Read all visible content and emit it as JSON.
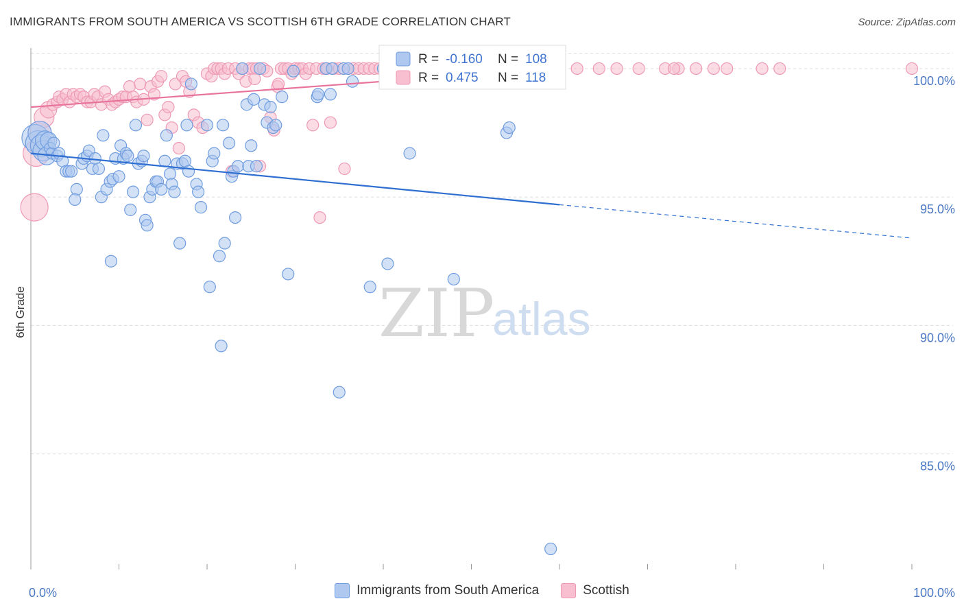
{
  "header": {
    "title": "IMMIGRANTS FROM SOUTH AMERICA VS SCOTTISH 6TH GRADE CORRELATION CHART",
    "source": "Source: ZipAtlas.com"
  },
  "watermark": {
    "zip": "ZIP",
    "atlas": "atlas"
  },
  "colors": {
    "blue_fill": "#aec8ef",
    "blue_stroke": "#6f9de0",
    "blue_line": "#2f6fd1",
    "pink_fill": "#f7bfd0",
    "pink_stroke": "#ee9ab5",
    "pink_line": "#e8739c",
    "tick_text": "#4a78c4",
    "grid": "#dcdcdc"
  },
  "legend_top": {
    "rows": [
      {
        "r_label": "R =",
        "r_value": "-0.160",
        "n_label": "N =",
        "n_value": "108"
      },
      {
        "r_label": "R =",
        "r_value": "0.475",
        "n_label": "N =",
        "n_value": "118"
      }
    ]
  },
  "chart_data": {
    "type": "scatter",
    "title": "IMMIGRANTS FROM SOUTH AMERICA VS SCOTTISH 6TH GRADE CORRELATION CHART",
    "xlabel": "",
    "ylabel": "6th Grade",
    "xlim": [
      0,
      100
    ],
    "ylim": [
      80.5,
      100.8
    ],
    "x_tick_labels": [
      "0.0%",
      "100.0%"
    ],
    "y_ticks": [
      85,
      90,
      95,
      100
    ],
    "y_tick_labels": [
      "85.0%",
      "90.0%",
      "95.0%",
      "100.0%"
    ],
    "grid": true,
    "legend_position": "top-center",
    "series": [
      {
        "name": "Immigrants from South America",
        "color": "#aec8ef",
        "R": -0.16,
        "N": 108,
        "trend": {
          "x0": 0,
          "y0": 96.7,
          "x1": 60,
          "y1": 94.7,
          "dash_to_x": 100,
          "dash_to_y": 93.4
        },
        "points": [
          [
            0.5,
            97.3
          ],
          [
            0.8,
            97.1
          ],
          [
            1.0,
            97.5
          ],
          [
            1.2,
            97.0
          ],
          [
            1.4,
            96.8
          ],
          [
            1.6,
            97.2
          ],
          [
            1.8,
            96.6
          ],
          [
            2.0,
            97.2
          ],
          [
            2.2,
            96.9
          ],
          [
            2.4,
            96.7
          ],
          [
            2.6,
            97.1
          ],
          [
            3.0,
            96.6
          ],
          [
            3.2,
            96.7
          ],
          [
            3.6,
            96.4
          ],
          [
            4.0,
            96.0
          ],
          [
            4.3,
            96.0
          ],
          [
            4.6,
            96.0
          ],
          [
            5.2,
            95.3
          ],
          [
            5.0,
            94.9
          ],
          [
            5.8,
            96.3
          ],
          [
            6.0,
            96.5
          ],
          [
            6.4,
            96.6
          ],
          [
            6.6,
            96.8
          ],
          [
            7.0,
            96.1
          ],
          [
            7.3,
            96.5
          ],
          [
            7.7,
            96.1
          ],
          [
            8.0,
            95.0
          ],
          [
            8.2,
            97.4
          ],
          [
            8.6,
            95.3
          ],
          [
            9.0,
            95.6
          ],
          [
            9.3,
            95.7
          ],
          [
            9.1,
            92.5
          ],
          [
            9.6,
            96.5
          ],
          [
            10.0,
            95.8
          ],
          [
            10.2,
            97.0
          ],
          [
            10.5,
            96.5
          ],
          [
            10.8,
            96.7
          ],
          [
            11.0,
            96.6
          ],
          [
            11.3,
            94.5
          ],
          [
            11.6,
            95.2
          ],
          [
            11.9,
            97.8
          ],
          [
            12.2,
            96.3
          ],
          [
            12.6,
            96.4
          ],
          [
            12.8,
            96.6
          ],
          [
            13.0,
            94.1
          ],
          [
            13.2,
            93.9
          ],
          [
            13.5,
            95.0
          ],
          [
            13.8,
            95.3
          ],
          [
            14.2,
            95.6
          ],
          [
            14.4,
            95.6
          ],
          [
            14.8,
            95.3
          ],
          [
            15.2,
            96.4
          ],
          [
            15.4,
            97.4
          ],
          [
            15.8,
            95.9
          ],
          [
            16.0,
            95.5
          ],
          [
            16.3,
            95.2
          ],
          [
            16.6,
            96.3
          ],
          [
            16.9,
            93.2
          ],
          [
            17.2,
            96.3
          ],
          [
            17.5,
            96.4
          ],
          [
            17.7,
            97.8
          ],
          [
            17.9,
            96.0
          ],
          [
            18.2,
            99.4
          ],
          [
            18.8,
            95.5
          ],
          [
            19.0,
            95.2
          ],
          [
            19.3,
            94.6
          ],
          [
            20.0,
            97.8
          ],
          [
            20.3,
            91.5
          ],
          [
            20.6,
            96.4
          ],
          [
            20.8,
            96.7
          ],
          [
            21.4,
            92.7
          ],
          [
            21.6,
            89.2
          ],
          [
            21.8,
            97.8
          ],
          [
            22.0,
            93.2
          ],
          [
            22.5,
            97.1
          ],
          [
            22.8,
            95.8
          ],
          [
            23.0,
            96.0
          ],
          [
            23.2,
            94.2
          ],
          [
            23.5,
            96.2
          ],
          [
            24.0,
            100.0
          ],
          [
            24.5,
            98.6
          ],
          [
            24.7,
            96.2
          ],
          [
            25.0,
            97.0
          ],
          [
            25.3,
            98.8
          ],
          [
            25.6,
            96.2
          ],
          [
            26.0,
            100.0
          ],
          [
            26.5,
            98.6
          ],
          [
            26.8,
            97.9
          ],
          [
            27.2,
            98.5
          ],
          [
            27.5,
            97.7
          ],
          [
            27.8,
            97.8
          ],
          [
            28.5,
            98.9
          ],
          [
            29.2,
            92.0
          ],
          [
            29.8,
            99.9
          ],
          [
            32.5,
            98.9
          ],
          [
            32.6,
            99.0
          ],
          [
            33.5,
            100.0
          ],
          [
            34.0,
            99.0
          ],
          [
            34.2,
            100.0
          ],
          [
            35.0,
            87.4
          ],
          [
            35.5,
            100.0
          ],
          [
            36.0,
            100.0
          ],
          [
            36.5,
            99.5
          ],
          [
            38.5,
            91.5
          ],
          [
            40.5,
            92.4
          ],
          [
            43.0,
            96.7
          ],
          [
            48.0,
            91.8
          ],
          [
            54.0,
            97.5
          ],
          [
            54.3,
            97.7
          ],
          [
            59.0,
            81.3
          ],
          [
            40.0,
            100.0
          ],
          [
            47.0,
            100.0
          ]
        ]
      },
      {
        "name": "Scottish",
        "color": "#f7bfd0",
        "R": 0.475,
        "N": 118,
        "trend": {
          "x0": 0,
          "y0": 98.5,
          "x1": 60,
          "y1": 100.0
        },
        "points": [
          [
            0.4,
            94.6
          ],
          [
            0.6,
            96.7
          ],
          [
            1.0,
            97.5
          ],
          [
            1.5,
            98.1
          ],
          [
            2.0,
            98.4
          ],
          [
            2.5,
            98.6
          ],
          [
            3.0,
            98.7
          ],
          [
            3.2,
            98.9
          ],
          [
            3.6,
            98.8
          ],
          [
            4.0,
            99.0
          ],
          [
            4.4,
            98.7
          ],
          [
            4.8,
            99.0
          ],
          [
            5.2,
            98.9
          ],
          [
            5.6,
            99.0
          ],
          [
            6.0,
            98.9
          ],
          [
            6.4,
            98.7
          ],
          [
            6.8,
            98.7
          ],
          [
            7.2,
            99.0
          ],
          [
            7.6,
            98.9
          ],
          [
            8.0,
            98.6
          ],
          [
            8.4,
            99.1
          ],
          [
            8.8,
            98.8
          ],
          [
            9.2,
            98.6
          ],
          [
            9.6,
            98.7
          ],
          [
            10.0,
            98.8
          ],
          [
            10.4,
            98.9
          ],
          [
            10.8,
            98.9
          ],
          [
            11.2,
            99.3
          ],
          [
            11.6,
            98.9
          ],
          [
            12.0,
            98.7
          ],
          [
            12.4,
            99.4
          ],
          [
            12.8,
            98.8
          ],
          [
            13.2,
            98.0
          ],
          [
            13.6,
            99.3
          ],
          [
            14.0,
            99.0
          ],
          [
            14.4,
            99.5
          ],
          [
            14.8,
            99.7
          ],
          [
            15.2,
            98.2
          ],
          [
            15.6,
            98.5
          ],
          [
            16.0,
            97.7
          ],
          [
            16.4,
            99.4
          ],
          [
            16.8,
            96.9
          ],
          [
            17.2,
            99.7
          ],
          [
            17.6,
            99.5
          ],
          [
            18.0,
            99.1
          ],
          [
            18.5,
            98.2
          ],
          [
            19.0,
            97.9
          ],
          [
            19.5,
            97.7
          ],
          [
            20.0,
            99.8
          ],
          [
            20.5,
            99.7
          ],
          [
            20.8,
            100.0
          ],
          [
            21.2,
            100.0
          ],
          [
            21.6,
            100.0
          ],
          [
            22.0,
            99.8
          ],
          [
            22.4,
            100.0
          ],
          [
            22.8,
            96.0
          ],
          [
            23.2,
            100.0
          ],
          [
            23.6,
            99.8
          ],
          [
            24.0,
            100.0
          ],
          [
            24.4,
            99.5
          ],
          [
            24.8,
            100.0
          ],
          [
            25.2,
            100.0
          ],
          [
            25.6,
            100.0
          ],
          [
            26.0,
            96.2
          ],
          [
            26.4,
            100.0
          ],
          [
            26.8,
            99.9
          ],
          [
            27.2,
            98.1
          ],
          [
            27.6,
            97.6
          ],
          [
            28.0,
            99.3
          ],
          [
            28.4,
            100.0
          ],
          [
            28.8,
            100.0
          ],
          [
            29.2,
            100.0
          ],
          [
            29.6,
            99.8
          ],
          [
            30.0,
            100.0
          ],
          [
            30.4,
            100.0
          ],
          [
            30.8,
            100.0
          ],
          [
            31.2,
            99.8
          ],
          [
            31.6,
            100.0
          ],
          [
            32.0,
            97.8
          ],
          [
            32.4,
            100.0
          ],
          [
            32.8,
            94.2
          ],
          [
            33.2,
            100.0
          ],
          [
            33.6,
            100.0
          ],
          [
            34.0,
            97.9
          ],
          [
            34.4,
            100.0
          ],
          [
            35.0,
            100.0
          ],
          [
            35.6,
            96.1
          ],
          [
            36.0,
            100.0
          ],
          [
            36.6,
            100.0
          ],
          [
            37.2,
            100.0
          ],
          [
            37.8,
            100.0
          ],
          [
            38.4,
            100.0
          ],
          [
            39.0,
            100.0
          ],
          [
            39.6,
            100.0
          ],
          [
            40.2,
            100.0
          ],
          [
            41.0,
            100.0
          ],
          [
            42.0,
            100.0
          ],
          [
            43.0,
            100.0
          ],
          [
            44.0,
            100.0
          ],
          [
            45.0,
            100.0
          ],
          [
            46.0,
            100.0
          ],
          [
            47.5,
            100.0
          ],
          [
            49.0,
            100.0
          ],
          [
            50.5,
            100.0
          ],
          [
            52.0,
            100.0
          ],
          [
            53.5,
            100.0
          ],
          [
            55.0,
            100.0
          ],
          [
            57.0,
            100.0
          ],
          [
            59.0,
            100.0
          ],
          [
            62.0,
            100.0
          ],
          [
            64.5,
            100.0
          ],
          [
            66.5,
            100.0
          ],
          [
            69.0,
            100.0
          ],
          [
            72.0,
            100.0
          ],
          [
            73.5,
            100.0
          ],
          [
            75.5,
            100.0
          ],
          [
            77.5,
            100.0
          ],
          [
            79.0,
            100.0
          ],
          [
            83.0,
            100.0
          ],
          [
            85.0,
            100.0
          ],
          [
            100.0,
            100.0
          ],
          [
            73.0,
            100.0
          ],
          [
            28.1,
            99.4
          ],
          [
            25.4,
            99.6
          ]
        ]
      }
    ]
  }
}
